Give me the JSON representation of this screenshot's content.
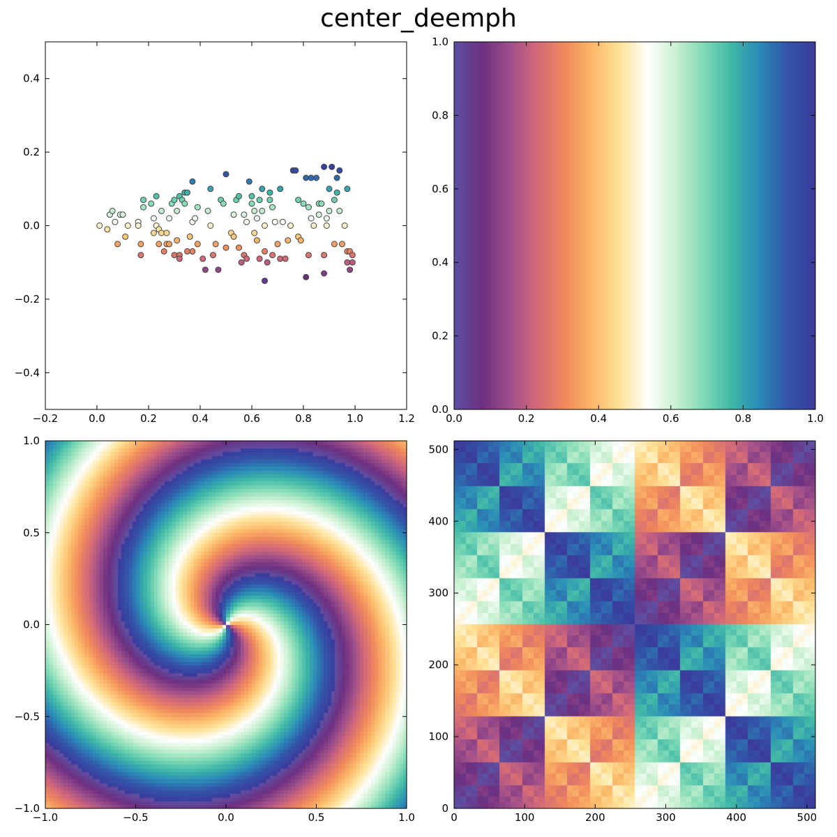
{
  "title": "center_deemph",
  "colormap": [
    "#5e4fa2",
    "#6d2f80",
    "#9e4f8a",
    "#d46a78",
    "#f08a5c",
    "#fcb96a",
    "#fee49c",
    "#ffffff",
    "#c8f0d0",
    "#7fdab6",
    "#3fb7a7",
    "#2b8ab8",
    "#3355a8",
    "#3a3b9c"
  ],
  "chart_data": [
    {
      "type": "scatter",
      "xlim": [
        -0.2,
        1.2
      ],
      "ylim": [
        -0.5,
        0.5
      ],
      "xticks": [
        "−0.2",
        "0.0",
        "0.2",
        "0.4",
        "0.6",
        "0.8",
        "1.0",
        "1.2"
      ],
      "yticks": [
        "−0.4",
        "−0.2",
        "0.0",
        "0.2",
        "0.4"
      ],
      "points": [
        [
          0.01,
          0.0
        ],
        [
          0.04,
          -0.01
        ],
        [
          0.05,
          0.03
        ],
        [
          0.06,
          0.04
        ],
        [
          0.07,
          0.01
        ],
        [
          0.08,
          -0.05
        ],
        [
          0.09,
          0.03
        ],
        [
          0.1,
          0.03
        ],
        [
          0.11,
          -0.03
        ],
        [
          0.12,
          0.0
        ],
        [
          0.16,
          0.01
        ],
        [
          0.16,
          0.0
        ],
        [
          0.17,
          -0.05
        ],
        [
          0.17,
          -0.08
        ],
        [
          0.18,
          0.07
        ],
        [
          0.18,
          0.05
        ],
        [
          0.21,
          0.06
        ],
        [
          0.22,
          -0.02
        ],
        [
          0.22,
          0.02
        ],
        [
          0.23,
          0.08
        ],
        [
          0.23,
          0.0
        ],
        [
          0.24,
          -0.01
        ],
        [
          0.24,
          -0.05
        ],
        [
          0.25,
          0.04
        ],
        [
          0.25,
          -0.02
        ],
        [
          0.26,
          -0.07
        ],
        [
          0.27,
          -0.05
        ],
        [
          0.28,
          -0.05
        ],
        [
          0.28,
          0.02
        ],
        [
          0.29,
          0.06
        ],
        [
          0.3,
          0.07
        ],
        [
          0.3,
          -0.08
        ],
        [
          0.31,
          0.04
        ],
        [
          0.31,
          -0.04
        ],
        [
          0.32,
          0.08
        ],
        [
          0.32,
          -0.08
        ],
        [
          0.32,
          -0.09
        ],
        [
          0.33,
          0.07
        ],
        [
          0.34,
          0.09
        ],
        [
          0.34,
          0.06
        ],
        [
          0.35,
          0.09
        ],
        [
          0.36,
          -0.03
        ],
        [
          0.37,
          0.01
        ],
        [
          0.37,
          -0.07
        ],
        [
          0.37,
          0.12
        ],
        [
          0.38,
          0.02
        ],
        [
          0.39,
          -0.05
        ],
        [
          0.39,
          0.05
        ],
        [
          0.41,
          -0.09
        ],
        [
          0.42,
          -0.12
        ],
        [
          0.43,
          0.04
        ],
        [
          0.44,
          0.0
        ],
        [
          0.44,
          0.1
        ],
        [
          0.46,
          -0.05
        ],
        [
          0.47,
          -0.12
        ],
        [
          0.48,
          0.07
        ],
        [
          0.49,
          0.06
        ],
        [
          0.5,
          0.14
        ],
        [
          0.5,
          -0.06
        ],
        [
          0.52,
          -0.02
        ],
        [
          0.53,
          -0.03
        ],
        [
          0.53,
          0.03
        ],
        [
          0.54,
          0.07
        ],
        [
          0.55,
          -0.06
        ],
        [
          0.55,
          0.08
        ],
        [
          0.56,
          -0.1
        ],
        [
          0.57,
          -0.08
        ],
        [
          0.57,
          0.03
        ],
        [
          0.58,
          0.01
        ],
        [
          0.58,
          -0.09
        ],
        [
          0.59,
          0.12
        ],
        [
          0.6,
          0.06
        ],
        [
          0.61,
          0.04
        ],
        [
          0.61,
          -0.02
        ],
        [
          0.62,
          -0.04
        ],
        [
          0.62,
          0.02
        ],
        [
          0.63,
          0.07
        ],
        [
          0.63,
          -0.09
        ],
        [
          0.64,
          0.1
        ],
        [
          0.64,
          0.04
        ],
        [
          0.65,
          -0.07
        ],
        [
          0.65,
          0.0
        ],
        [
          0.66,
          -0.1
        ],
        [
          0.67,
          0.07
        ],
        [
          0.67,
          0.09
        ],
        [
          0.68,
          0.05
        ],
        [
          0.68,
          -0.08
        ],
        [
          0.69,
          0.01
        ],
        [
          0.7,
          -0.05
        ],
        [
          0.71,
          0.1
        ],
        [
          0.71,
          -0.09
        ],
        [
          0.72,
          0.01
        ],
        [
          0.73,
          -0.09
        ],
        [
          0.74,
          -0.04
        ],
        [
          0.75,
          0.0
        ],
        [
          0.76,
          0.15
        ],
        [
          0.77,
          0.15
        ],
        [
          0.78,
          -0.03
        ],
        [
          0.78,
          0.07
        ],
        [
          0.79,
          -0.04
        ],
        [
          0.8,
          0.06
        ],
        [
          0.81,
          0.13
        ],
        [
          0.82,
          0.05
        ],
        [
          0.82,
          -0.08
        ],
        [
          0.83,
          0.13
        ],
        [
          0.83,
          0.02
        ],
        [
          0.84,
          0.0
        ],
        [
          0.85,
          0.13
        ],
        [
          0.86,
          0.06
        ],
        [
          0.86,
          0.03
        ],
        [
          0.87,
          0.06
        ],
        [
          0.88,
          -0.08
        ],
        [
          0.88,
          0.16
        ],
        [
          0.89,
          0.02
        ],
        [
          0.89,
          0.0
        ],
        [
          0.9,
          0.04
        ],
        [
          0.9,
          0.1
        ],
        [
          0.91,
          0.16
        ],
        [
          0.92,
          0.07
        ],
        [
          0.92,
          -0.05
        ],
        [
          0.93,
          0.09
        ],
        [
          0.93,
          0.13
        ],
        [
          0.94,
          0.04
        ],
        [
          0.94,
          0.15
        ],
        [
          0.95,
          -0.05
        ],
        [
          0.96,
          0.0
        ],
        [
          0.97,
          0.1
        ],
        [
          0.97,
          -0.07
        ],
        [
          0.97,
          -0.1
        ],
        [
          0.98,
          -0.12
        ],
        [
          0.98,
          -0.07
        ],
        [
          0.99,
          -0.08
        ],
        [
          0.99,
          -0.1
        ],
        [
          0.65,
          -0.15
        ],
        [
          0.81,
          -0.14
        ],
        [
          0.88,
          -0.13
        ],
        [
          0.35,
          -0.07
        ],
        [
          0.45,
          -0.08
        ],
        [
          0.27,
          -0.02
        ],
        [
          0.6,
          0.08
        ]
      ]
    },
    {
      "type": "heatmap",
      "xlim": [
        0.0,
        1.0
      ],
      "ylim": [
        0.0,
        1.0
      ],
      "xticks": [
        "0.0",
        "0.2",
        "0.4",
        "0.6",
        "0.8",
        "1.0"
      ],
      "yticks": [
        "0.0",
        "0.2",
        "0.4",
        "0.6",
        "0.8",
        "1.0"
      ]
    },
    {
      "type": "heatmap",
      "xlim": [
        -1.0,
        1.0
      ],
      "ylim": [
        -1.0,
        1.0
      ],
      "xticks": [
        "−1.0",
        "−0.5",
        "0.0",
        "0.5",
        "1.0"
      ],
      "yticks": [
        "−1.0",
        "−0.5",
        "0.0",
        "0.5",
        "1.0"
      ]
    },
    {
      "type": "heatmap",
      "xlim": [
        0,
        512
      ],
      "ylim": [
        0,
        512
      ],
      "xticks": [
        "0",
        "100",
        "200",
        "300",
        "400",
        "500"
      ],
      "yticks": [
        "0",
        "100",
        "200",
        "300",
        "400",
        "500"
      ]
    }
  ]
}
